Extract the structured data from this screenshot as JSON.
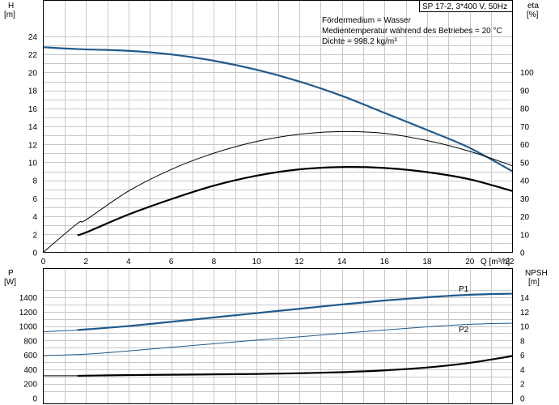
{
  "header": {
    "product": "SP 17-2, 3*400 V, 50Hz"
  },
  "info_lines": [
    "Fördermedium = Wasser",
    "Medientemperatur während des Betriebes = 20 °C",
    "Dichte = 998.2 kg/m³"
  ],
  "colors": {
    "blue_curve": "#1f5a8c",
    "black_curve": "#000000",
    "grid": "#c8c8c8"
  },
  "chart_data": [
    {
      "type": "line",
      "name": "upper-chart",
      "x_label": "Q [m³/h]",
      "xlim": [
        0,
        22
      ],
      "x_ticks": [
        0,
        2,
        4,
        6,
        8,
        10,
        12,
        14,
        16,
        18,
        20,
        22
      ],
      "y_left_label_top": "H",
      "y_left_label_unit": "[m]",
      "ylim_left": [
        0,
        24
      ],
      "y_left_ticks": [
        0,
        2,
        4,
        6,
        8,
        10,
        12,
        14,
        16,
        18,
        20,
        22,
        24
      ],
      "y_right_label_top": "eta",
      "y_right_label_unit": "[%]",
      "ylim_right": [
        0,
        110
      ],
      "y_right_ticks": [
        0,
        10,
        20,
        30,
        40,
        50,
        60,
        70,
        80,
        90,
        100
      ],
      "grid": true,
      "series": [
        {
          "axis": "left",
          "style": "thick-blue",
          "points": [
            [
              0,
              22.8
            ],
            [
              1.6,
              22.6
            ],
            [
              4,
              22.4
            ],
            [
              6,
              22.0
            ],
            [
              8,
              21.3
            ],
            [
              10,
              20.3
            ],
            [
              12,
              19.0
            ],
            [
              14,
              17.4
            ],
            [
              16,
              15.5
            ],
            [
              18,
              13.6
            ],
            [
              20,
              11.6
            ],
            [
              22,
              9.0
            ]
          ]
        },
        {
          "axis": "left",
          "style": "thin-blue-dashed",
          "points": [
            [
              0,
              22.8
            ],
            [
              1.6,
              22.6
            ]
          ]
        },
        {
          "axis": "right",
          "style": "thick-black",
          "points": [
            [
              1.6,
              9.5
            ],
            [
              2,
              11
            ],
            [
              4,
              21
            ],
            [
              6,
              29.5
            ],
            [
              8,
              37
            ],
            [
              10,
              42.5
            ],
            [
              12,
              46
            ],
            [
              14,
              47.3
            ],
            [
              16,
              46.8
            ],
            [
              18,
              44.5
            ],
            [
              20,
              40.5
            ],
            [
              22,
              34
            ]
          ]
        },
        {
          "axis": "right",
          "style": "thin-black",
          "points": [
            [
              0,
              0
            ],
            [
              1.6,
              16
            ],
            [
              2,
              18
            ],
            [
              4,
              34
            ],
            [
              6,
              46
            ],
            [
              8,
              55
            ],
            [
              10,
              61.5
            ],
            [
              12,
              65.5
            ],
            [
              14,
              67
            ],
            [
              16,
              66
            ],
            [
              18,
              62
            ],
            [
              20,
              56
            ],
            [
              22,
              48
            ]
          ]
        }
      ]
    },
    {
      "type": "line",
      "name": "lower-chart",
      "xlim": [
        0,
        22
      ],
      "y_left_label_top": "P",
      "y_left_label_unit": "[W]",
      "ylim_left": [
        0,
        1600
      ],
      "y_left_ticks": [
        0,
        200,
        400,
        600,
        800,
        1000,
        1200,
        1400
      ],
      "y_right_label_top": "NPSH",
      "y_right_label_unit": "[m]",
      "ylim_right": [
        0,
        16
      ],
      "y_right_ticks": [
        0,
        2,
        4,
        6,
        8,
        10,
        12,
        14
      ],
      "grid": true,
      "series": [
        {
          "name": "P1",
          "axis": "left",
          "style": "thick-blue",
          "points": [
            [
              1.6,
              945
            ],
            [
              4,
              1000
            ],
            [
              6,
              1060
            ],
            [
              8,
              1120
            ],
            [
              10,
              1180
            ],
            [
              12,
              1240
            ],
            [
              14,
              1300
            ],
            [
              16,
              1355
            ],
            [
              18,
              1400
            ],
            [
              20,
              1435
            ],
            [
              22,
              1450
            ]
          ]
        },
        {
          "name": "",
          "axis": "left",
          "style": "thin-blue",
          "points": [
            [
              0,
              920
            ],
            [
              1.6,
              945
            ]
          ]
        },
        {
          "name": "P2",
          "axis": "left",
          "style": "thin-blue",
          "points": [
            [
              0,
              590
            ],
            [
              2,
              610
            ],
            [
              4,
              655
            ],
            [
              6,
              705
            ],
            [
              8,
              755
            ],
            [
              10,
              805
            ],
            [
              12,
              850
            ],
            [
              14,
              900
            ],
            [
              16,
              945
            ],
            [
              18,
              990
            ],
            [
              20,
              1025
            ],
            [
              22,
              1040
            ]
          ]
        },
        {
          "name": "",
          "axis": "right",
          "style": "thick-black",
          "points": [
            [
              1.6,
              3.1
            ],
            [
              4,
              3.2
            ],
            [
              6,
              3.25
            ],
            [
              8,
              3.3
            ],
            [
              10,
              3.35
            ],
            [
              12,
              3.45
            ],
            [
              14,
              3.6
            ],
            [
              16,
              3.85
            ],
            [
              18,
              4.25
            ],
            [
              20,
              4.9
            ],
            [
              22,
              5.85
            ]
          ]
        },
        {
          "name": "",
          "axis": "right",
          "style": "thin-black",
          "points": [
            [
              0,
              3.1
            ],
            [
              1.6,
              3.1
            ]
          ]
        }
      ]
    }
  ]
}
